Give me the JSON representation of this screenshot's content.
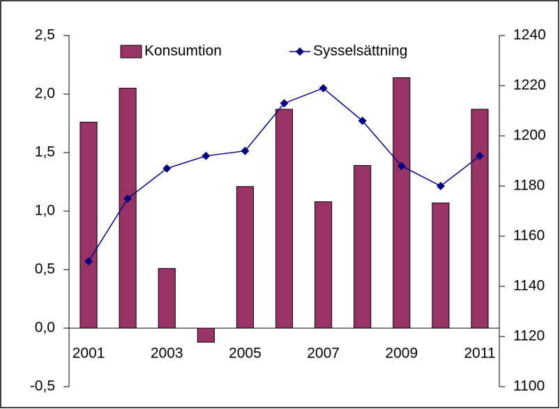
{
  "chart_data": {
    "type": "bar+line",
    "categories": [
      "2001",
      null,
      "2003",
      null,
      "2005",
      null,
      "2007",
      null,
      "2009",
      null,
      "2011"
    ],
    "series": [
      {
        "name": "Konsumtion",
        "type": "bar",
        "color": "#993366",
        "values": [
          1.76,
          2.05,
          0.51,
          -0.12,
          1.21,
          1.87,
          1.08,
          1.39,
          2.14,
          1.07,
          1.87
        ]
      },
      {
        "name": "Sysselsättning",
        "type": "line",
        "axis": "y2",
        "color": "#000080",
        "values": [
          1150,
          1175,
          1187,
          1192,
          1194,
          1213,
          1219,
          1206,
          1188,
          1180,
          1192
        ]
      }
    ],
    "ylim": [
      -0.5,
      2.5
    ],
    "yticks": [
      {
        "value": -0.5,
        "label": "-0,5"
      },
      {
        "value": 0,
        "label": "0,0"
      },
      {
        "value": 0.5,
        "label": "0,5"
      },
      {
        "value": 1,
        "label": "1,0"
      },
      {
        "value": 1.5,
        "label": "1,5"
      },
      {
        "value": 2,
        "label": "2,0"
      },
      {
        "value": 2.5,
        "label": "2,5"
      }
    ],
    "y2lim": [
      1100,
      1240
    ],
    "y2ticks": [
      1100,
      1120,
      1140,
      1160,
      1180,
      1200,
      1220,
      1240
    ],
    "grid": false,
    "legend": "top"
  }
}
